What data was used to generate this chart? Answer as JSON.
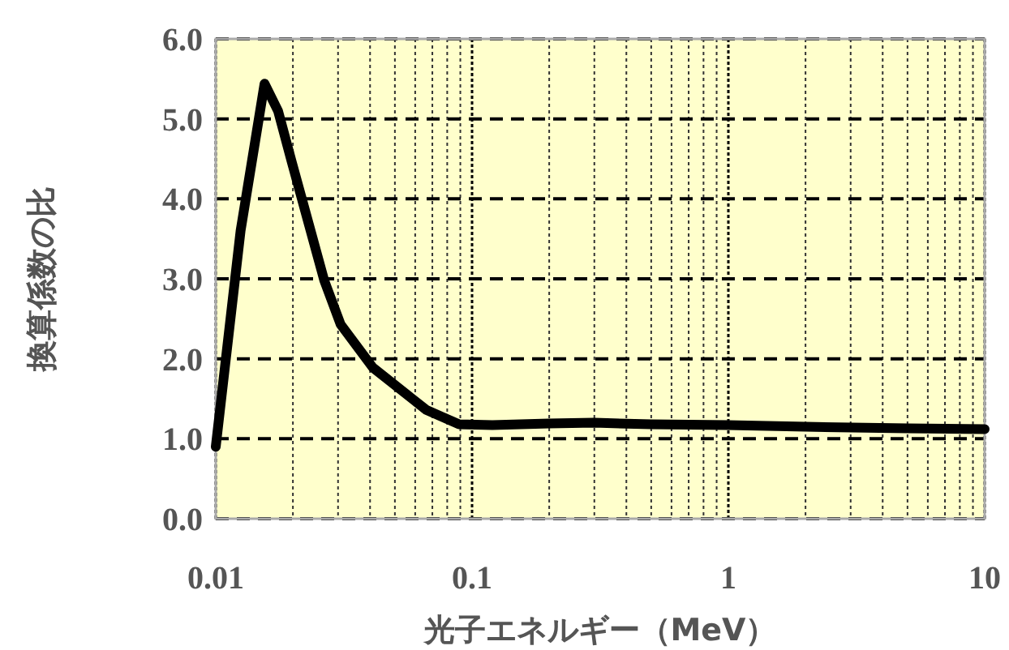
{
  "chart_data": {
    "type": "line",
    "xlabel": "光子エネルギー（MeV）",
    "ylabel": "換算係数の比",
    "x": [
      0.01,
      0.0125,
      0.0155,
      0.0175,
      0.0198,
      0.0265,
      0.0307,
      0.041,
      0.0663,
      0.089,
      0.12,
      0.2,
      0.3,
      0.5,
      1,
      2,
      5,
      10
    ],
    "series": [
      {
        "color": "#000000",
        "values": [
          0.9,
          3.6,
          5.44,
          5.1,
          4.46,
          2.98,
          2.43,
          1.89,
          1.36,
          1.18,
          1.17,
          1.19,
          1.2,
          1.18,
          1.17,
          1.15,
          1.13,
          1.12
        ]
      }
    ],
    "log": "x",
    "xlim": [
      0.01,
      10
    ],
    "xticks": [
      0.01,
      0.1,
      1,
      10
    ],
    "ylim": [
      0,
      6
    ],
    "yticks": [
      {
        "value": 0,
        "label": "0.0"
      },
      {
        "value": 1,
        "label": "1.0"
      },
      {
        "value": 2,
        "label": "2.0"
      },
      {
        "value": 3,
        "label": "3.0"
      },
      {
        "value": 4,
        "label": "4.0"
      },
      {
        "value": 5,
        "label": "5.0"
      },
      {
        "value": 6,
        "label": "6.0"
      }
    ],
    "grid": true
  }
}
